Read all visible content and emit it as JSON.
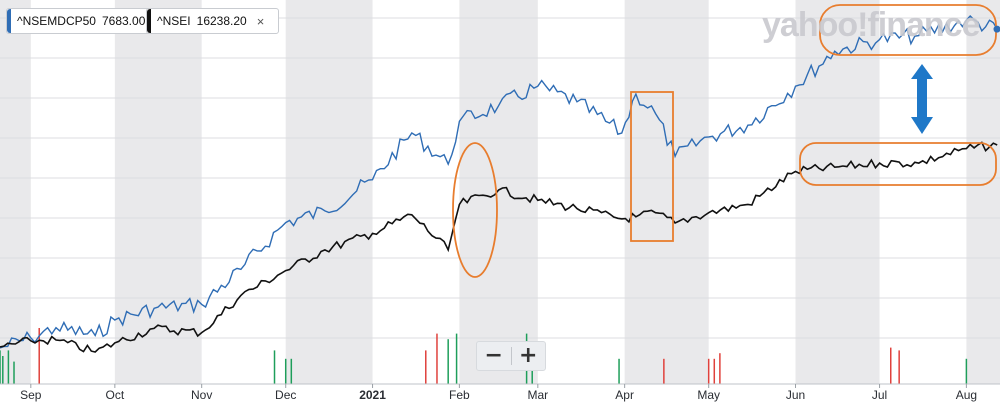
{
  "legend": [
    {
      "symbol": "^NSEMDCP50",
      "value": "7683.00",
      "color": "#2f6db5"
    },
    {
      "symbol": "^NSEI",
      "value": "16238.20",
      "color": "#111111",
      "close": "×"
    }
  ],
  "watermark": "yahoo!finance",
  "zoom": {
    "minus": "−",
    "plus": "+"
  },
  "colors": {
    "band": "#e9e9eb",
    "annotation": "#e87d2e",
    "arrow": "#1f78c8",
    "volume_up": "#1e9e5a",
    "volume_down": "#e0413c"
  },
  "chart_data": {
    "type": "line",
    "x_axis_labels": [
      "Sep",
      "Oct",
      "Nov",
      "Dec",
      "2021",
      "Feb",
      "Mar",
      "Apr",
      "May",
      "Jun",
      "Jul",
      "Aug"
    ],
    "x": [
      "Aug 21",
      "Sep 1",
      "Sep 10",
      "Sep 24",
      "Oct 1",
      "Oct 15",
      "Nov 1",
      "Nov 15",
      "Dec 1",
      "Dec 15",
      "Jan 1",
      "Jan 15",
      "Jan 28",
      "Feb 1",
      "Feb 15",
      "Mar 1",
      "Mar 15",
      "Mar 31",
      "Apr 5",
      "Apr 12",
      "Apr 19",
      "May 1",
      "May 15",
      "Jun 1",
      "Jun 15",
      "Jul 1",
      "Jul 15",
      "Aug 1",
      "Aug 12"
    ],
    "series": [
      {
        "name": "^NSEMDCP50",
        "values": [
          3590,
          3720,
          3850,
          3750,
          3950,
          4100,
          4150,
          4600,
          5200,
          5350,
          5750,
          6350,
          5950,
          6500,
          6700,
          6950,
          6750,
          6350,
          6850,
          6600,
          6050,
          6300,
          6450,
          6950,
          7400,
          7550,
          7600,
          7800,
          7683
        ]
      },
      {
        "name": "^NSEI",
        "values": [
          11350,
          11500,
          11520,
          11230,
          11450,
          11800,
          11700,
          12600,
          13200,
          13700,
          14100,
          14550,
          13700,
          14800,
          15150,
          14900,
          14700,
          14450,
          14500,
          14600,
          14350,
          14600,
          14800,
          15600,
          15700,
          15800,
          15800,
          16150,
          16238
        ]
      }
    ],
    "volume_ticks": [
      {
        "x": "Aug 21",
        "up": true,
        "h": 0.6
      },
      {
        "x": "Aug 22",
        "up": true,
        "h": 0.5
      },
      {
        "x": "Aug 24",
        "up": true,
        "h": 0.6
      },
      {
        "x": "Aug 26",
        "up": true,
        "h": 0.4
      },
      {
        "x": "Sep 4",
        "up": false,
        "h": 1.0
      },
      {
        "x": "Nov 27",
        "up": true,
        "h": 0.6
      },
      {
        "x": "Dec 1",
        "up": true,
        "h": 0.45
      },
      {
        "x": "Dec 3",
        "up": true,
        "h": 0.45
      },
      {
        "x": "Jan 20",
        "up": false,
        "h": 0.6
      },
      {
        "x": "Jan 24",
        "up": false,
        "h": 0.9
      },
      {
        "x": "Jan 28",
        "up": true,
        "h": 0.8
      },
      {
        "x": "Jan 31",
        "up": true,
        "h": 0.9
      },
      {
        "x": "Feb 25",
        "up": true,
        "h": 0.9
      },
      {
        "x": "Feb 27",
        "up": true,
        "h": 0.6
      },
      {
        "x": "Mar 30",
        "up": true,
        "h": 0.45
      },
      {
        "x": "Apr 15",
        "up": false,
        "h": 0.45
      },
      {
        "x": "May 1",
        "up": false,
        "h": 0.45
      },
      {
        "x": "May 3",
        "up": false,
        "h": 0.45
      },
      {
        "x": "May 5",
        "up": false,
        "h": 0.55
      },
      {
        "x": "Jul 5",
        "up": false,
        "h": 0.65
      },
      {
        "x": "Jul 8",
        "up": false,
        "h": 0.6
      },
      {
        "x": "Aug 1",
        "up": true,
        "h": 0.45
      }
    ]
  }
}
